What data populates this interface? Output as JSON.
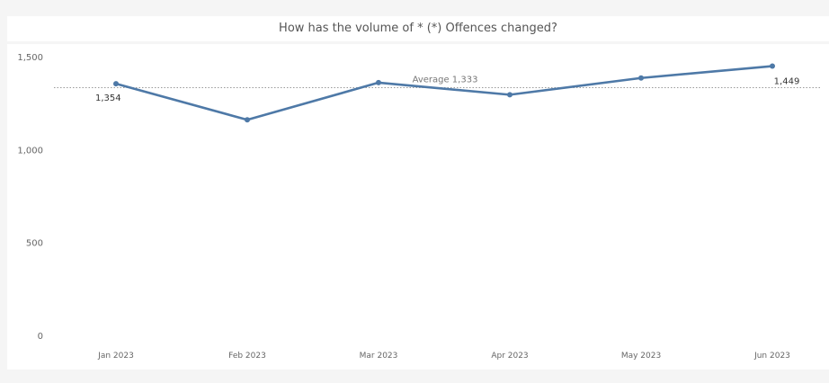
{
  "title": "How has the volume of  * (*) Offences changed?",
  "chart_data": {
    "type": "line",
    "title": "How has the volume of  * (*) Offences changed?",
    "xlabel": "",
    "ylabel": "",
    "categories": [
      "Jan 2023",
      "Feb 2023",
      "Mar 2023",
      "Apr 2023",
      "May 2023",
      "Jun 2023"
    ],
    "series": [
      {
        "values": [
          1354,
          1160,
          1360,
          1295,
          1385,
          1449
        ],
        "color": "#4e79a7"
      }
    ],
    "ylim": [
      0,
      1500
    ],
    "yticks": [
      0,
      500,
      1000,
      1500
    ],
    "ytick_labels": [
      "0",
      "500",
      "1,000",
      "1,500"
    ],
    "reference_line": {
      "value": 1333,
      "label": "Average 1,333"
    },
    "point_labels": [
      {
        "index": 0,
        "text": "1,354"
      },
      {
        "index": 5,
        "text": "1,449"
      }
    ],
    "grid": false,
    "legend": "none"
  }
}
